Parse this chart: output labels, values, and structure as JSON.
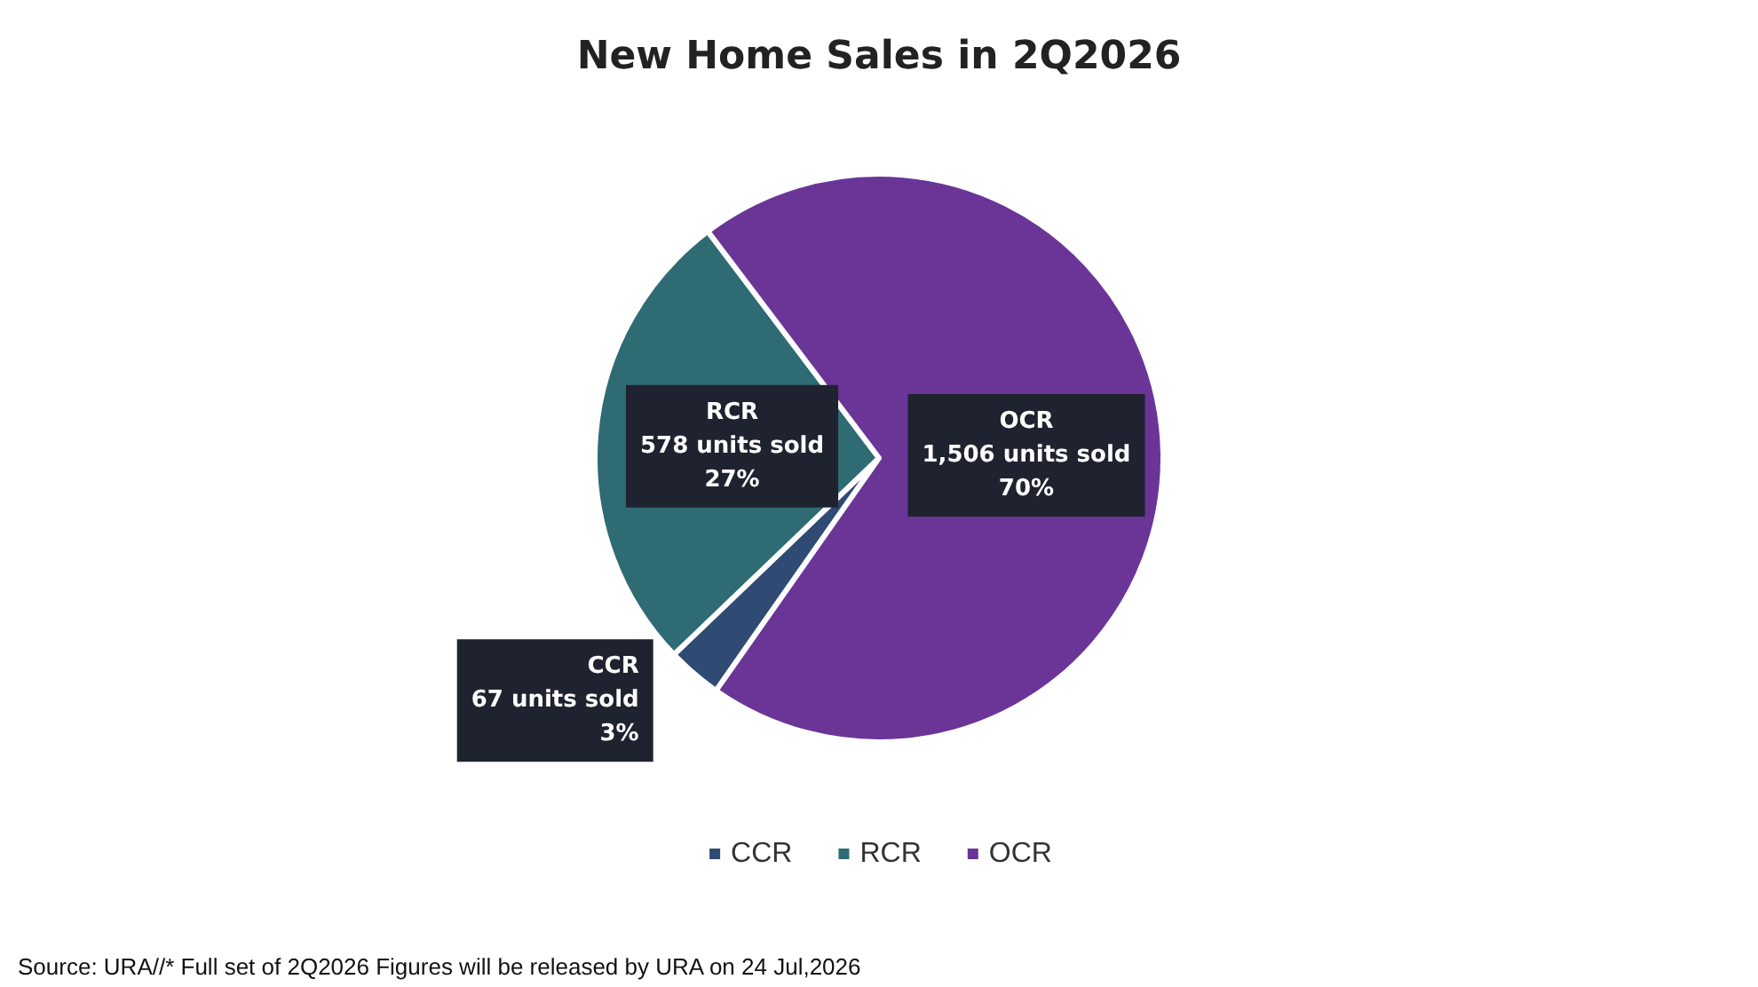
{
  "chart_data": {
    "type": "pie",
    "title": "New Home Sales in 2Q2026",
    "categories": [
      "CCR",
      "RCR",
      "OCR"
    ],
    "values": [
      67,
      578,
      1506
    ],
    "colors": [
      "#2f4a73",
      "#2e6b73",
      "#6a3597"
    ],
    "value_labels": [
      "67 units sold\n3%",
      "578 units sold\n27%",
      "1,506 units sold\n70%"
    ],
    "legend": "bottom",
    "annotations": [
      "Source: URA//* Full set of 2Q2026 Figures will be released by URA on 24 Jul,2026"
    ]
  }
}
